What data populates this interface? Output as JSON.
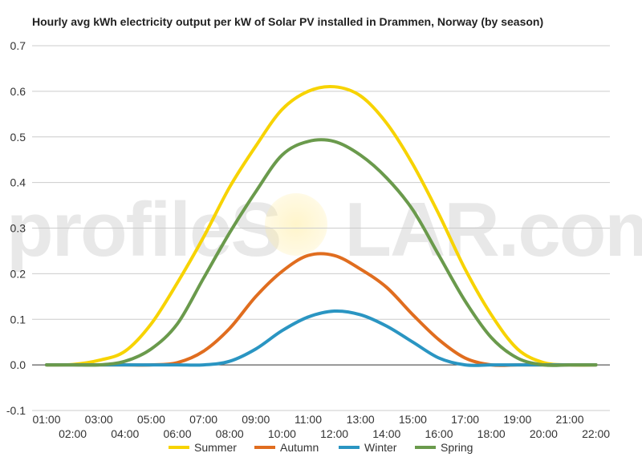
{
  "title": "Hourly avg kWh electricity output per kW of Solar PV installed in Drammen, Norway (by season)",
  "watermark": {
    "text_before": "profileS",
    "text_after": "LAR.com"
  },
  "chart_data": {
    "type": "line",
    "title": "Hourly avg kWh electricity output per kW of Solar PV installed in Drammen, Norway (by season)",
    "xlabel": "",
    "ylabel": "",
    "ylim": [
      -0.1,
      0.7
    ],
    "yticks": [
      "-0.1",
      "0.0",
      "0.1",
      "0.2",
      "0.3",
      "0.4",
      "0.5",
      "0.6",
      "0.7"
    ],
    "yticks_values": [
      -0.1,
      0,
      0.1,
      0.2,
      0.3,
      0.4,
      0.5,
      0.6,
      0.7
    ],
    "categories": [
      "01:00",
      "02:00",
      "03:00",
      "04:00",
      "05:00",
      "06:00",
      "07:00",
      "08:00",
      "09:00",
      "10:00",
      "11:00",
      "12:00",
      "13:00",
      "14:00",
      "15:00",
      "16:00",
      "17:00",
      "18:00",
      "19:00",
      "20:00",
      "21:00",
      "22:00"
    ],
    "grid": true,
    "legend_position": "bottom",
    "series": [
      {
        "name": "Summer",
        "color": "#f7d300",
        "values": [
          0.0,
          0.001,
          0.01,
          0.03,
          0.09,
          0.18,
          0.28,
          0.39,
          0.48,
          0.56,
          0.6,
          0.61,
          0.59,
          0.53,
          0.44,
          0.33,
          0.21,
          0.11,
          0.035,
          0.005,
          0.0,
          0.0
        ]
      },
      {
        "name": "Autumn",
        "color": "#e06d1f",
        "values": [
          0.0,
          0.0,
          0.0,
          0.0,
          0.0,
          0.005,
          0.03,
          0.08,
          0.15,
          0.205,
          0.24,
          0.24,
          0.21,
          0.17,
          0.11,
          0.055,
          0.015,
          0.0,
          0.0,
          0.0,
          0.0,
          0.0
        ]
      },
      {
        "name": "Winter",
        "color": "#2a95c2",
        "values": [
          0.0,
          0.0,
          0.0,
          0.0,
          0.0,
          0.0,
          0.0,
          0.008,
          0.035,
          0.075,
          0.105,
          0.118,
          0.11,
          0.085,
          0.05,
          0.015,
          0.0,
          0.0,
          0.0,
          0.0,
          0.0,
          0.0
        ]
      },
      {
        "name": "Spring",
        "color": "#6a9a4c",
        "values": [
          0.0,
          0.0,
          0.0,
          0.008,
          0.035,
          0.09,
          0.19,
          0.29,
          0.38,
          0.46,
          0.49,
          0.49,
          0.46,
          0.41,
          0.34,
          0.24,
          0.14,
          0.06,
          0.015,
          0.0,
          0.0,
          0.0
        ]
      }
    ]
  }
}
